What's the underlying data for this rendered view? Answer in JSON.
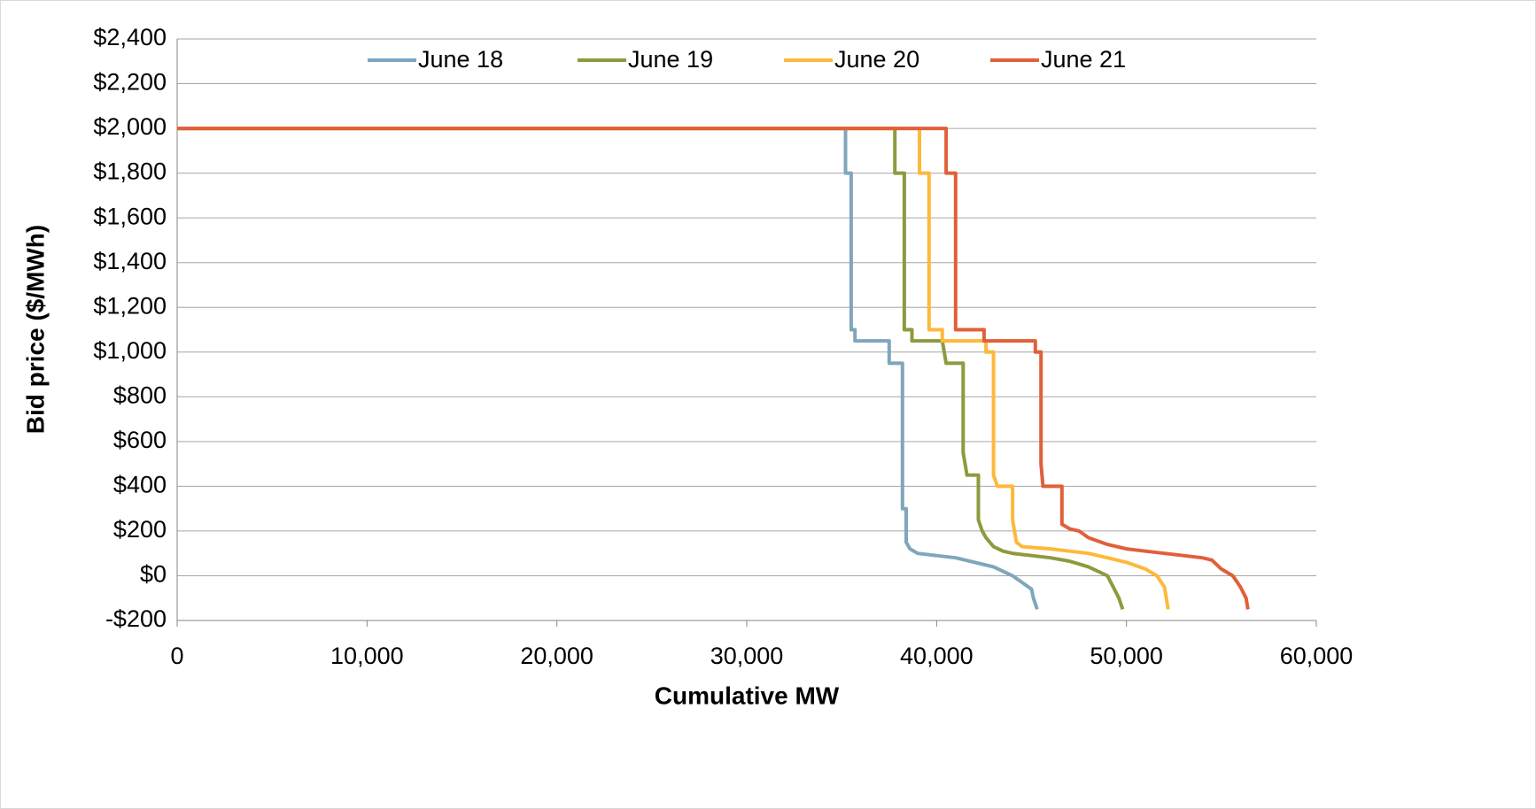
{
  "chart_data": {
    "type": "line",
    "xlabel": "Cumulative MW",
    "ylabel": "Bid price ($/MWh)",
    "xlim": [
      0,
      60000
    ],
    "xticks": [
      0,
      {
        "value": 10000,
        "label": "10,000"
      },
      {
        "value": 20000,
        "label": "20,000"
      },
      {
        "value": 30000,
        "label": "30,000"
      },
      {
        "value": 40000,
        "label": "40,000"
      },
      {
        "value": 50000,
        "label": "50,000"
      },
      {
        "value": 60000,
        "label": "60,000"
      }
    ],
    "ylim": [
      -200,
      2400
    ],
    "yticks": [
      {
        "value": -200,
        "label": "-$200"
      },
      {
        "value": 0,
        "label": "$0"
      },
      {
        "value": 200,
        "label": "$200"
      },
      {
        "value": 400,
        "label": "$400"
      },
      {
        "value": 600,
        "label": "$600"
      },
      {
        "value": 800,
        "label": "$800"
      },
      {
        "value": 1000,
        "label": "$1,000"
      },
      {
        "value": 1200,
        "label": "$1,200"
      },
      {
        "value": 1400,
        "label": "$1,400"
      },
      {
        "value": 1600,
        "label": "$1,600"
      },
      {
        "value": 1800,
        "label": "$1,800"
      },
      {
        "value": 2000,
        "label": "$2,000"
      },
      {
        "value": 2200,
        "label": "$2,200"
      },
      {
        "value": 2400,
        "label": "$2,400"
      }
    ],
    "grid": true,
    "legend": "top",
    "series": [
      {
        "name": "June 18",
        "color": "#7fa6bc",
        "x": [
          0,
          35200,
          35200,
          35500,
          35500,
          35700,
          35700,
          37500,
          37500,
          38200,
          38200,
          38400,
          38400,
          38600,
          39000,
          40000,
          41000,
          42000,
          43000,
          43500,
          44000,
          44500,
          45000,
          45100,
          45300
        ],
        "values": [
          2000,
          2000,
          1800,
          1800,
          1100,
          1100,
          1050,
          1050,
          950,
          950,
          300,
          300,
          150,
          120,
          100,
          90,
          80,
          60,
          40,
          20,
          0,
          -30,
          -60,
          -100,
          -150
        ]
      },
      {
        "name": "June 19",
        "color": "#8f9a3e",
        "x": [
          0,
          37800,
          37800,
          38300,
          38300,
          38700,
          38700,
          40300,
          40500,
          41400,
          41400,
          41500,
          41600,
          42200,
          42200,
          42400,
          42600,
          43000,
          43500,
          44000,
          45000,
          46000,
          47000,
          48000,
          49000,
          49300,
          49600,
          49800
        ],
        "values": [
          2000,
          2000,
          1800,
          1800,
          1100,
          1100,
          1050,
          1050,
          950,
          950,
          550,
          500,
          450,
          450,
          250,
          200,
          170,
          130,
          110,
          100,
          90,
          80,
          65,
          40,
          0,
          -50,
          -100,
          -150
        ]
      },
      {
        "name": "June 20",
        "color": "#fdb93a",
        "x": [
          0,
          39100,
          39100,
          39600,
          39600,
          40300,
          40300,
          42600,
          42600,
          43000,
          43000,
          43200,
          44000,
          44000,
          44200,
          44500,
          46000,
          47000,
          48000,
          49000,
          50000,
          51000,
          51600,
          52000,
          52200
        ],
        "values": [
          2000,
          2000,
          1800,
          1800,
          1100,
          1100,
          1050,
          1050,
          1000,
          1000,
          450,
          400,
          400,
          250,
          150,
          130,
          120,
          110,
          100,
          80,
          60,
          30,
          0,
          -50,
          -150
        ]
      },
      {
        "name": "June 21",
        "color": "#e0603a",
        "x": [
          0,
          40500,
          40500,
          41000,
          41000,
          42500,
          42500,
          45200,
          45200,
          45500,
          45500,
          45600,
          46600,
          46600,
          47000,
          47500,
          48000,
          49000,
          50000,
          51000,
          52000,
          53000,
          54000,
          54500,
          55000,
          55600,
          56000,
          56300,
          56400
        ],
        "values": [
          2000,
          2000,
          1800,
          1800,
          1100,
          1100,
          1050,
          1050,
          1000,
          1000,
          500,
          400,
          400,
          230,
          210,
          200,
          170,
          140,
          120,
          110,
          100,
          90,
          80,
          70,
          30,
          0,
          -50,
          -100,
          -150
        ]
      }
    ]
  }
}
